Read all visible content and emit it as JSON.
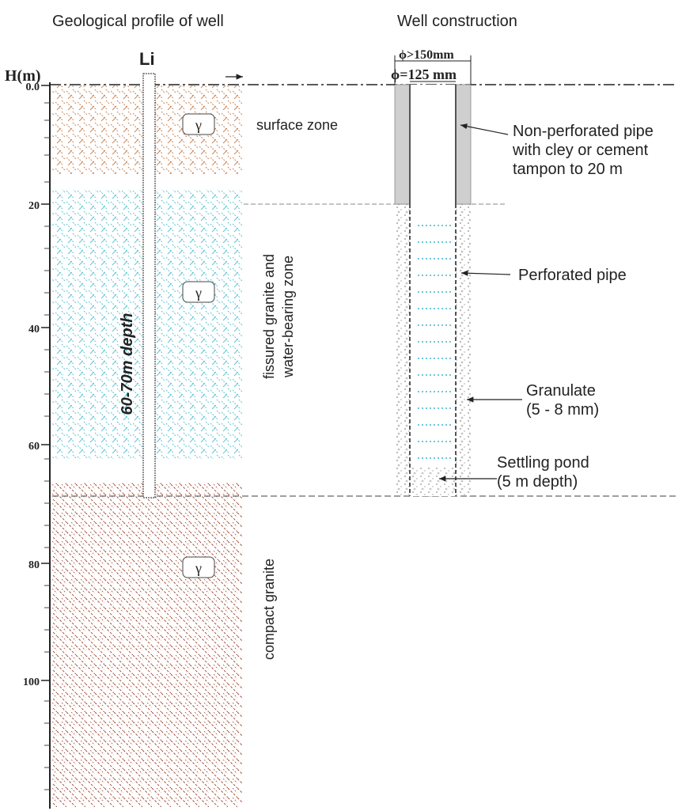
{
  "titles": {
    "profile": "Geological profile of well",
    "construction": "Well construction"
  },
  "axis": {
    "label": "H(m)",
    "ticks": [
      "0.0",
      "20",
      "40",
      "60",
      "80",
      "100"
    ]
  },
  "well_label": "Li",
  "depth_label": "60-70m depth",
  "rock_symbol": "γ",
  "zones": {
    "surface": "surface zone",
    "fissured_line1": "fissured granite and",
    "fissured_line2": "water-bearing zone",
    "compact": "compact granite"
  },
  "dimensions": {
    "outer": "ϕ>150mm",
    "inner": "ϕ=125 mm"
  },
  "annotations": {
    "nonperf_line1": "Non-perforated pipe",
    "nonperf_line2": "with cley or cement",
    "nonperf_line3": "tampon to 20 m",
    "perforated": "Perforated pipe",
    "granulate_line1": "Granulate",
    "granulate_line2": "(5 - 8 mm)",
    "settling_line1": "Settling pond",
    "settling_line2": "(5 m depth)"
  },
  "colors": {
    "surface_hatch": "#c8875a",
    "water_hatch": "#5fc4d4",
    "compact_hatch": "#a0523c",
    "perforation": "#3fb6cc",
    "casing_fill": "#cfcfcf"
  }
}
